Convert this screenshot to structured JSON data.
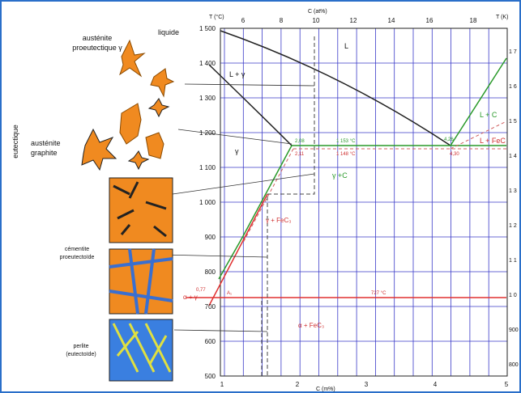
{
  "left_labels": {
    "proeutectic": [
      "austénite",
      "proeutectique γ"
    ],
    "liquid": "liquide",
    "eutectic": "eutectique",
    "austenite": "austénite",
    "graphite": "graphite",
    "cementite": [
      "cémentite",
      "proeutectoïde"
    ],
    "pearlite": [
      "perlite",
      "(eutectoïde)"
    ]
  },
  "axes": {
    "t_c_title": "T (°C)",
    "c_at_title": "C (at%)",
    "t_k_title": "T (K)",
    "c_m_title": "C (m%)",
    "t_c_ticks": [
      "1 500",
      "1 400",
      "1 300",
      "1 200",
      "1 100",
      "1 000",
      "900",
      "800",
      "700",
      "600",
      "500"
    ],
    "c_at_ticks": [
      "6",
      "8",
      "10",
      "12",
      "14",
      "16",
      "18"
    ],
    "t_k_ticks": [
      "1 7",
      "1 6",
      "1 5",
      "1 4",
      "1 3",
      "1 2",
      "1 1",
      "1 0",
      "900",
      "800"
    ],
    "c_m_ticks": [
      "1",
      "2",
      "3",
      "4",
      "5"
    ]
  },
  "regions": {
    "l": "L",
    "l_gamma": "L + γ",
    "gamma": "γ",
    "gamma_c": "γ +C",
    "l_c": "L + C",
    "l_fec": "L + FeC",
    "gamma_fec": "γ + FeC₃",
    "alpha_gamma": "α + γ",
    "alpha_fec": "α + FeC₃"
  },
  "annotations": {
    "a1": "A₁",
    "t727": "727 °C",
    "t1153": "1 153 °C",
    "t1148": "1 148 °C",
    "c208": "2,08",
    "c211": "2,11",
    "c426": "4,26",
    "c430": "4,30",
    "c077": "0,77"
  }
}
